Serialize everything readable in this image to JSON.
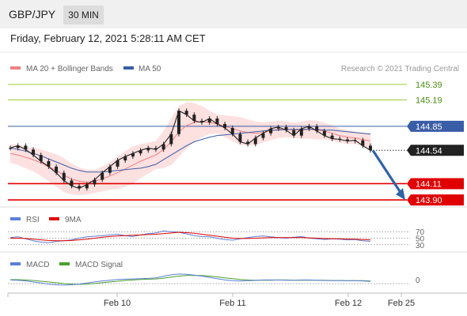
{
  "header": {
    "pair": "GBP/JPY",
    "timeframe": "30 MIN",
    "datetime": "Friday, February 12, 2021 5:28:11 AM CET"
  },
  "legend": {
    "ma20_bb": "MA 20 + Bollinger Bands",
    "ma50": "MA 50",
    "credit": "Research © 2021 Trading Central",
    "rsi": "RSI",
    "ma9": "9MA",
    "macd": "MACD",
    "macd_signal": "MACD Signal"
  },
  "colors": {
    "price": "#222222",
    "ma20": "#f08080",
    "bb_fill": "#fde0e0",
    "ma50": "#3a5da8",
    "resistance": "#9acd32",
    "pivot": "#3a5da8",
    "support": "#e00000",
    "arrow": "#2f63a8",
    "rsi": "#5b7fd6",
    "ma9": "#e00000",
    "macd": "#5b7fd6",
    "macd_signal": "#4aa02c"
  },
  "chart_data": [
    {
      "type": "line",
      "title": "GBP/JPY 30 MIN",
      "x_ticks": [
        "Feb 10",
        "Feb 11",
        "Feb 12",
        "Feb 25"
      ],
      "ylim": [
        143.85,
        145.46
      ],
      "levels": [
        {
          "label": "145.39",
          "value": 145.39,
          "kind": "resistance"
        },
        {
          "label": "145.19",
          "value": 145.19,
          "kind": "resistance"
        },
        {
          "label": "144.85",
          "value": 144.85,
          "kind": "pivot"
        },
        {
          "label": "144.54",
          "value": 144.54,
          "kind": "current"
        },
        {
          "label": "144.11",
          "value": 144.11,
          "kind": "support"
        },
        {
          "label": "143.90",
          "value": 143.9,
          "kind": "support"
        }
      ],
      "series": [
        {
          "name": "Price",
          "values": [
            144.57,
            144.6,
            144.55,
            144.48,
            144.4,
            144.33,
            144.25,
            144.15,
            144.08,
            144.05,
            144.1,
            144.16,
            144.25,
            144.33,
            144.41,
            144.46,
            144.5,
            144.54,
            144.57,
            144.55,
            144.62,
            144.75,
            145.05,
            145.0,
            144.92,
            144.9,
            144.95,
            144.88,
            144.83,
            144.75,
            144.65,
            144.62,
            144.7,
            144.76,
            144.82,
            144.84,
            144.8,
            144.73,
            144.82,
            144.85,
            144.79,
            144.73,
            144.69,
            144.68,
            144.66,
            144.67,
            144.6,
            144.54
          ]
        },
        {
          "name": "MA 20",
          "values": [
            144.5,
            144.48,
            144.45,
            144.42,
            144.38,
            144.33,
            144.28,
            144.22,
            144.17,
            144.14,
            144.13,
            144.14,
            144.17,
            144.21,
            144.25,
            144.3,
            144.35,
            144.4,
            144.44,
            144.48,
            144.55,
            144.65,
            144.78,
            144.86,
            144.9,
            144.91,
            144.9,
            144.88,
            144.85,
            144.82,
            144.79,
            144.77,
            144.76,
            144.77,
            144.79,
            144.81,
            144.81,
            144.8,
            144.8,
            144.81,
            144.8,
            144.79,
            144.76,
            144.73,
            144.71,
            144.7,
            144.68,
            144.66
          ]
        },
        {
          "name": "MA 50",
          "values": [
            144.57,
            144.55,
            144.53,
            144.5,
            144.47,
            144.43,
            144.39,
            144.35,
            144.31,
            144.28,
            144.26,
            144.26,
            144.26,
            144.27,
            144.28,
            144.29,
            144.3,
            144.31,
            144.33,
            144.36,
            144.42,
            144.48,
            144.54,
            144.6,
            144.65,
            144.68,
            144.71,
            144.73,
            144.74,
            144.75,
            144.76,
            144.77,
            144.78,
            144.79,
            144.8,
            144.8,
            144.81,
            144.81,
            144.81,
            144.81,
            144.81,
            144.8,
            144.8,
            144.79,
            144.78,
            144.77,
            144.76,
            144.75
          ]
        }
      ],
      "bollinger_width": [
        0.12,
        0.13,
        0.14,
        0.15,
        0.17,
        0.19,
        0.21,
        0.22,
        0.2,
        0.18,
        0.16,
        0.15,
        0.16,
        0.18,
        0.21,
        0.23,
        0.24,
        0.22,
        0.2,
        0.18,
        0.24,
        0.3,
        0.33,
        0.3,
        0.25,
        0.2,
        0.15,
        0.12,
        0.14,
        0.16,
        0.18,
        0.17,
        0.15,
        0.13,
        0.12,
        0.11,
        0.1,
        0.1,
        0.11,
        0.12,
        0.12,
        0.11,
        0.1,
        0.09,
        0.09,
        0.08,
        0.09,
        0.1
      ],
      "forecast": {
        "from": 144.54,
        "to": 143.9
      }
    },
    {
      "type": "line",
      "title": "RSI",
      "levels": [
        70,
        50,
        30
      ],
      "level_labels": [
        "70",
        "50",
        "30"
      ],
      "ylim": [
        15,
        85
      ],
      "series": [
        {
          "name": "RSI",
          "values": [
            52,
            54,
            48,
            42,
            38,
            36,
            40,
            42,
            45,
            50,
            54,
            56,
            58,
            60,
            62,
            58,
            55,
            60,
            64,
            66,
            72,
            70,
            68,
            63,
            58,
            55,
            54,
            50,
            46,
            44,
            48,
            52,
            55,
            57,
            54,
            52,
            50,
            53,
            55,
            50,
            48,
            46,
            48,
            47,
            45,
            46,
            42,
            40
          ]
        },
        {
          "name": "9MA",
          "values": [
            50,
            50,
            49,
            47,
            45,
            43,
            42,
            42,
            43,
            45,
            47,
            50,
            53,
            55,
            57,
            58,
            59,
            60,
            61,
            62,
            64,
            66,
            68,
            67,
            65,
            62,
            59,
            56,
            53,
            50,
            49,
            49,
            50,
            51,
            52,
            52,
            52,
            52,
            52,
            51,
            50,
            49,
            48,
            48,
            47,
            47,
            46,
            45
          ]
        }
      ]
    },
    {
      "type": "line",
      "title": "MACD",
      "levels": [
        0
      ],
      "level_labels": [
        "0"
      ],
      "ylim": [
        -0.4,
        0.4
      ],
      "series": [
        {
          "name": "MACD",
          "values": [
            0.02,
            0.01,
            -0.02,
            -0.06,
            -0.1,
            -0.14,
            -0.17,
            -0.18,
            -0.17,
            -0.14,
            -0.1,
            -0.06,
            -0.02,
            0.01,
            0.04,
            0.05,
            0.06,
            0.07,
            0.08,
            0.1,
            0.16,
            0.22,
            0.25,
            0.24,
            0.21,
            0.17,
            0.12,
            0.07,
            0.02,
            -0.01,
            -0.02,
            -0.01,
            0.0,
            0.02,
            0.02,
            0.02,
            0.01,
            0.01,
            0.02,
            0.02,
            0.01,
            0.0,
            -0.01,
            -0.01,
            -0.01,
            -0.01,
            -0.02,
            -0.04
          ]
        },
        {
          "name": "MACD Signal",
          "values": [
            0.03,
            0.03,
            0.02,
            0.0,
            -0.03,
            -0.06,
            -0.09,
            -0.12,
            -0.14,
            -0.15,
            -0.14,
            -0.12,
            -0.09,
            -0.06,
            -0.03,
            0.0,
            0.02,
            0.04,
            0.05,
            0.06,
            0.09,
            0.13,
            0.17,
            0.19,
            0.2,
            0.19,
            0.17,
            0.14,
            0.1,
            0.07,
            0.04,
            0.02,
            0.01,
            0.01,
            0.01,
            0.02,
            0.02,
            0.01,
            0.01,
            0.01,
            0.01,
            0.01,
            0.0,
            0.0,
            -0.01,
            -0.01,
            -0.01,
            -0.02
          ]
        }
      ]
    }
  ]
}
